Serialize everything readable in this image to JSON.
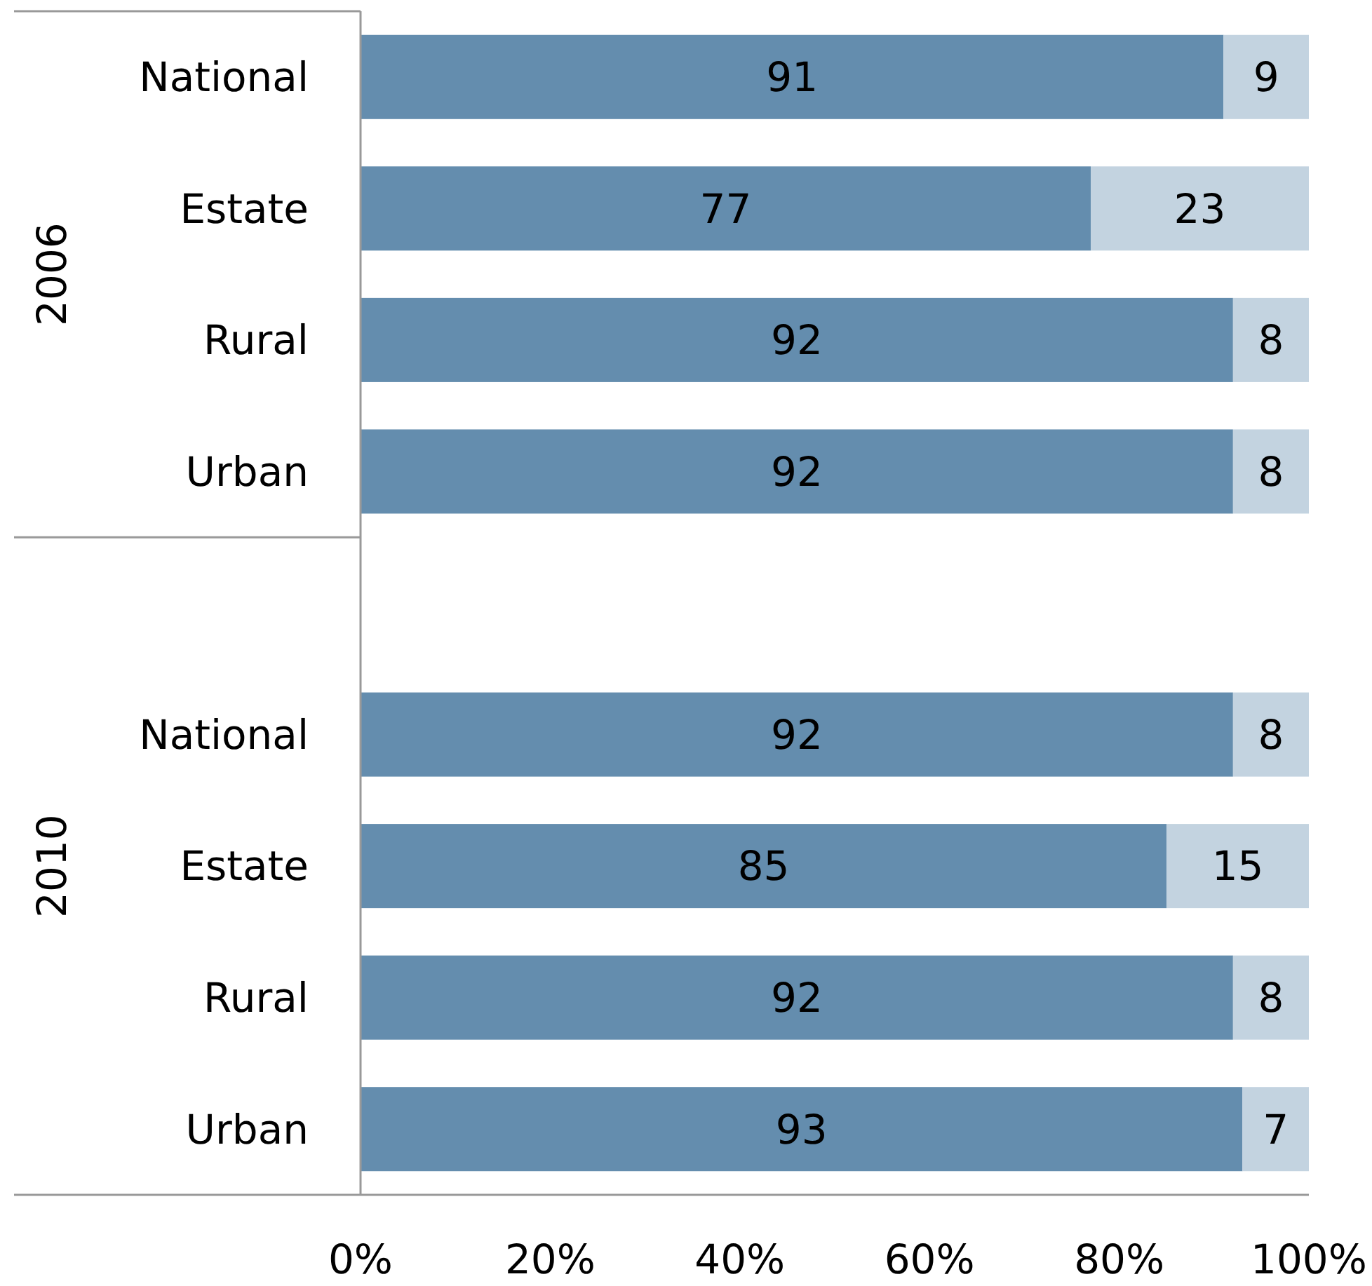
{
  "chart_data": {
    "type": "bar",
    "orientation": "horizontal",
    "stacked": true,
    "data_labels": true,
    "categories": [
      "National",
      "Estate",
      "Rural",
      "Urban",
      null,
      "National",
      "Estate",
      "Rural",
      "Urban"
    ],
    "series": [
      {
        "color": "#648dae",
        "values": [
          91,
          77,
          92,
          92,
          null,
          92,
          85,
          92,
          93
        ]
      },
      {
        "color": "#c3d3e0",
        "values": [
          9,
          23,
          8,
          8,
          null,
          8,
          15,
          8,
          7
        ]
      }
    ],
    "annotations": [
      "2006",
      "2010"
    ],
    "xlim": [
      0,
      100
    ],
    "xticks": [
      {
        "value": 0,
        "label": "0%"
      },
      {
        "value": 20,
        "label": "20%"
      },
      {
        "value": 40,
        "label": "40%"
      },
      {
        "value": 60,
        "label": "60%"
      },
      {
        "value": 80,
        "label": "80%"
      },
      {
        "value": 100,
        "label": "100%"
      }
    ]
  }
}
